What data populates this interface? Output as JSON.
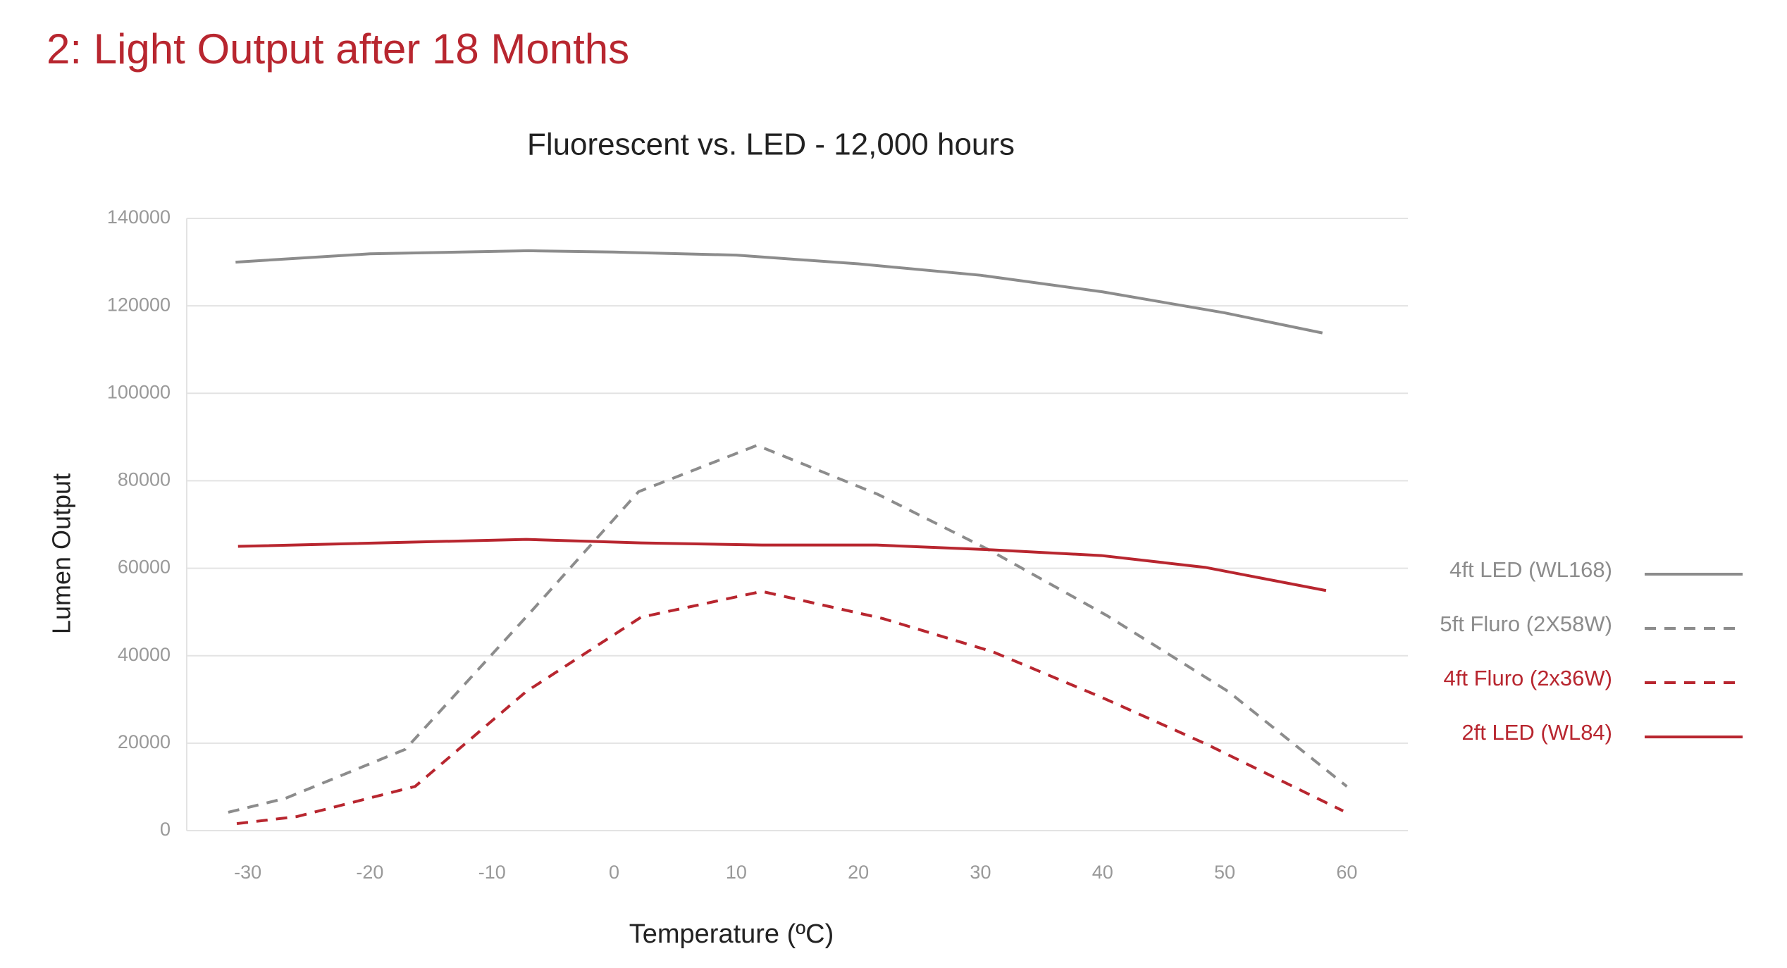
{
  "page_title": "2: Light Output after 18 Months",
  "chart_data": {
    "type": "line",
    "title": "Fluorescent vs. LED - 12,000 hours",
    "x_label": "Temperature (ºC)",
    "y_label": "Lumen Output",
    "xlim": [
      -35,
      65
    ],
    "xticks": [
      -30,
      -20,
      -10,
      0,
      10,
      20,
      30,
      40,
      50,
      60
    ],
    "ylim": [
      0,
      140000
    ],
    "yticks": [
      0,
      20000,
      40000,
      60000,
      80000,
      100000,
      120000,
      140000
    ],
    "grid": true,
    "legend": "right",
    "series": [
      {
        "name": "4ft LED (WL168)",
        "color": "#8c8c8c",
        "dashed": false,
        "x": [
          -31,
          -20,
          -7,
          0,
          10,
          20,
          30,
          40,
          50,
          58
        ],
        "values": [
          130000,
          131900,
          132600,
          132300,
          131600,
          129600,
          127000,
          123200,
          118400,
          113800
        ]
      },
      {
        "name": "5ft Fluro (2X58W)",
        "color": "#8c8c8c",
        "dashed": true,
        "x": [
          -31.6,
          -26.9,
          -17.1,
          -6.7,
          2,
          11.7,
          21.6,
          30.7,
          40.4,
          50.3,
          60
        ],
        "values": [
          4200,
          7400,
          18600,
          50400,
          77500,
          88100,
          76900,
          64200,
          49100,
          31800,
          10100
        ]
      },
      {
        "name": "4ft Fluro (2x36W)",
        "color": "#b8262f",
        "dashed": true,
        "x": [
          -30.9,
          -26,
          -16.3,
          -7.2,
          2.2,
          12.1,
          22,
          31,
          39.9,
          48.4,
          59.7
        ],
        "values": [
          1600,
          3200,
          10100,
          31800,
          48800,
          54700,
          48500,
          40900,
          30500,
          19900,
          4500
        ]
      },
      {
        "name": "2ft LED (WL84)",
        "color": "#b8262f",
        "dashed": false,
        "x": [
          -30.8,
          -7.2,
          2.2,
          12.1,
          21.5,
          31,
          39.9,
          48.4,
          58.3
        ],
        "values": [
          65000,
          66600,
          65800,
          65300,
          65300,
          64200,
          62900,
          60200,
          54900
        ]
      }
    ]
  }
}
